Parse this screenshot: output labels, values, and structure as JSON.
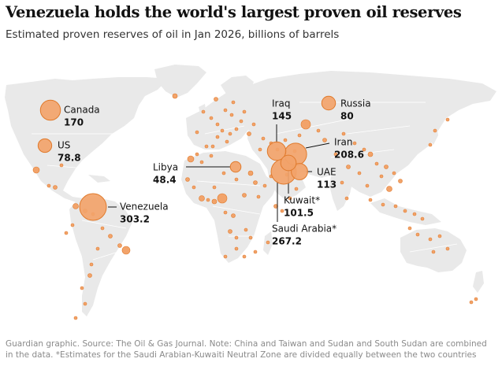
{
  "title": "Venezuela holds the world's largest proven oil reserves",
  "subtitle": "Estimated proven reserves of oil in Jan 2026, billions of barrels",
  "footer": {
    "line1": "Guardian graphic. Source: The Oil & Gas Journal. Note: China and Taiwan and Sudan and South Sudan are combined",
    "line2": "in the data. *Estimates for the Saudi Arabian-Kuwaiti Neutral Zone are divided equally between the two countries"
  },
  "colors": {
    "land": "#e9e9e9",
    "bubble_fill": "#f2a36a",
    "bubble_stroke": "#e07a2c",
    "leader": "#121212",
    "text": "#121212"
  },
  "labelled": [
    {
      "country": "Canada",
      "value": "170"
    },
    {
      "country": "US",
      "value": "78.8"
    },
    {
      "country": "Venezuela",
      "value": "303.2"
    },
    {
      "country": "Libya",
      "value": "48.4"
    },
    {
      "country": "Iraq",
      "value": "145"
    },
    {
      "country": "Russia",
      "value": "80"
    },
    {
      "country": "Iran",
      "value": "208.6"
    },
    {
      "country": "UAE",
      "value": "113"
    },
    {
      "country": "Kuwait*",
      "value": "101.5"
    },
    {
      "country": "Saudi Arabia*",
      "value": "267.2"
    }
  ]
}
